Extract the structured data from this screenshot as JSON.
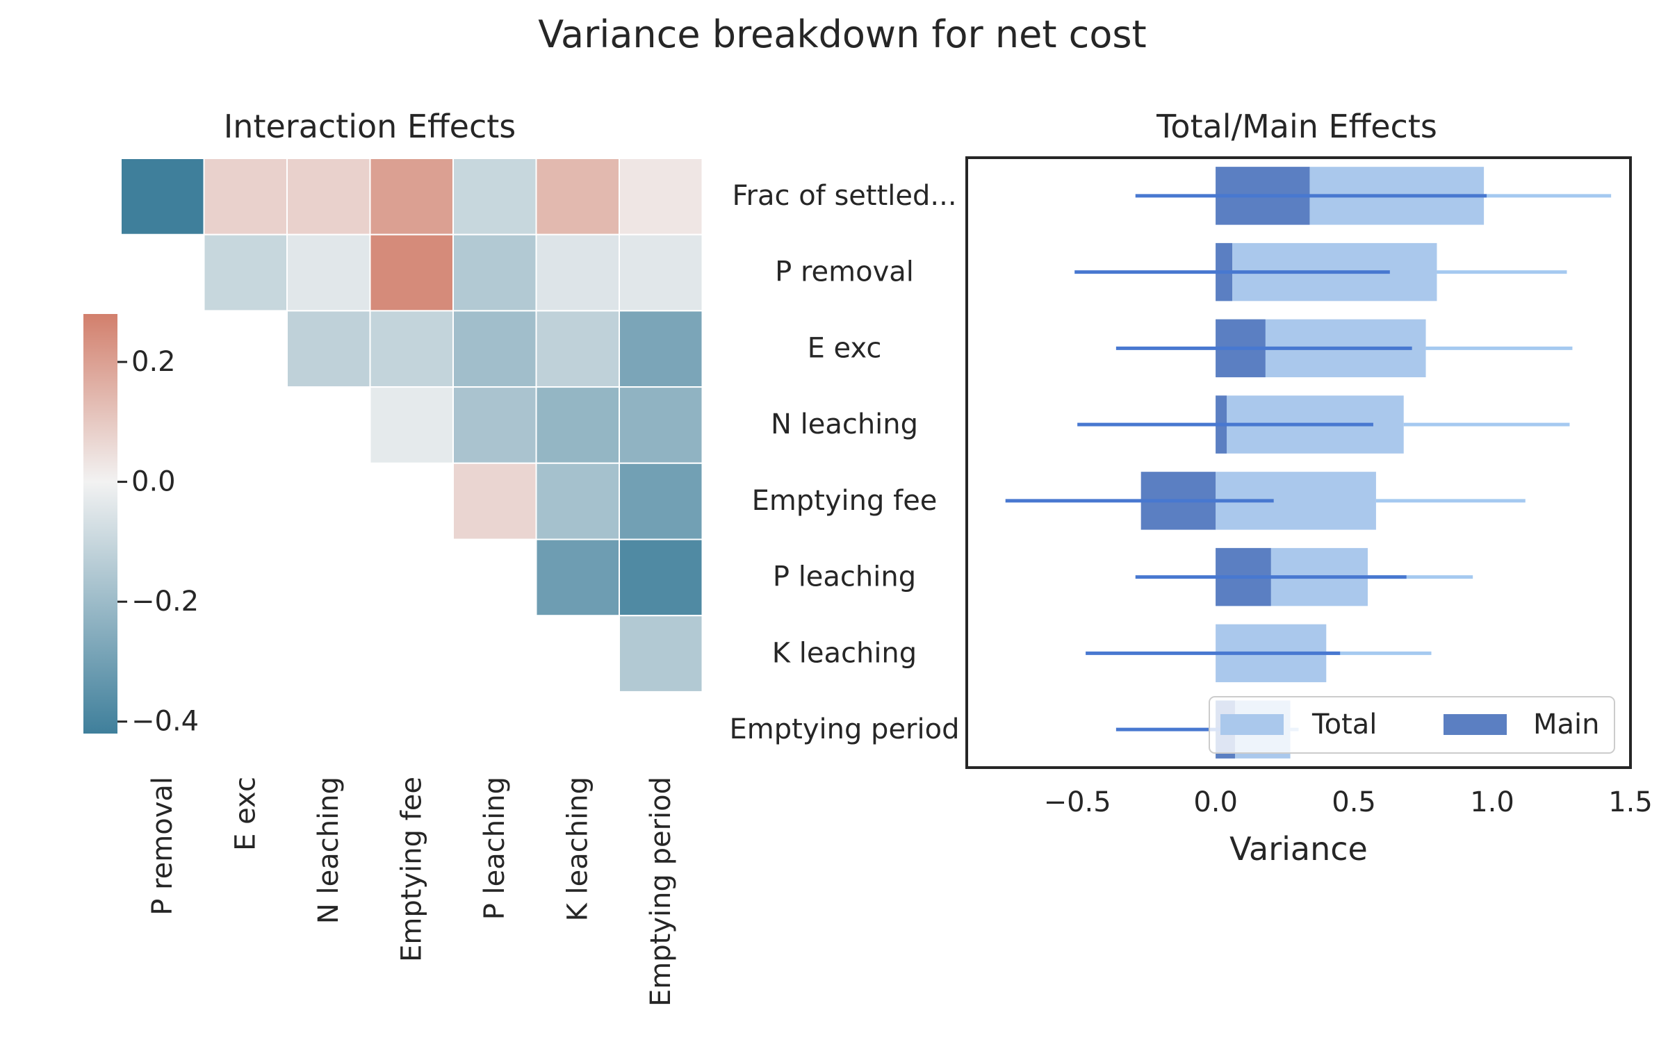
{
  "figure_title": "Variance breakdown for net cost",
  "chart_data": [
    {
      "type": "heatmap",
      "title": "Interaction Effects",
      "x_categories": [
        "P removal",
        "E exc",
        "N leaching",
        "Emptying fee",
        "P leaching",
        "K leaching",
        "Emptying period"
      ],
      "matrix": [
        [
          -0.42,
          0.08,
          0.08,
          0.2,
          -0.1,
          0.14,
          0.03
        ],
        [
          null,
          -0.1,
          -0.04,
          0.25,
          -0.15,
          -0.05,
          -0.04
        ],
        [
          null,
          null,
          -0.12,
          -0.11,
          -0.19,
          -0.12,
          -0.28
        ],
        [
          null,
          null,
          null,
          -0.03,
          -0.17,
          -0.22,
          -0.23
        ],
        [
          null,
          null,
          null,
          null,
          0.07,
          -0.18,
          -0.3
        ],
        [
          null,
          null,
          null,
          null,
          null,
          -0.31,
          -0.38
        ],
        [
          null,
          null,
          null,
          null,
          null,
          null,
          -0.15
        ]
      ],
      "colorbar": {
        "ticks": [
          0.2,
          0.0,
          -0.2,
          -0.4
        ],
        "range": [
          -0.42,
          0.28
        ]
      },
      "colors": {
        "negative": "#3f7f9b",
        "neutral": "#f2f2f2",
        "positive": "#d27f6c"
      }
    },
    {
      "type": "bar",
      "orientation": "horizontal",
      "title": "Total/Main Effects",
      "xlabel": "Variance",
      "xlim": [
        -0.9,
        1.5
      ],
      "xticks": [
        -0.5,
        0.0,
        0.5,
        1.0,
        1.5
      ],
      "categories": [
        "Frac of settled...",
        "P removal",
        "E exc",
        "N leaching",
        "Emptying fee",
        "P leaching",
        "K leaching",
        "Emptying period"
      ],
      "series": [
        {
          "name": "Total",
          "color": "#aac8ec",
          "values": [
            0.97,
            0.8,
            0.76,
            0.68,
            0.58,
            0.55,
            0.4,
            0.27
          ],
          "ci": [
            [
              null,
              1.43
            ],
            [
              null,
              1.27
            ],
            [
              null,
              1.29
            ],
            [
              null,
              1.28
            ],
            [
              null,
              1.12
            ],
            [
              null,
              0.93
            ],
            [
              null,
              0.78
            ],
            [
              null,
              0.3
            ]
          ]
        },
        {
          "name": "Main",
          "color": "#5b7fc2",
          "values": [
            0.34,
            0.06,
            0.18,
            0.04,
            -0.27,
            0.2,
            0.0,
            0.07
          ],
          "ci": [
            [
              -0.29,
              0.98
            ],
            [
              -0.51,
              0.63
            ],
            [
              -0.36,
              0.71
            ],
            [
              -0.5,
              0.57
            ],
            [
              -0.76,
              0.21
            ],
            [
              -0.29,
              0.69
            ],
            [
              -0.47,
              0.45
            ],
            [
              -0.36,
              0.03
            ]
          ]
        }
      ],
      "legend": {
        "location": "lower-right",
        "entries": [
          "Total",
          "Main"
        ]
      },
      "colors": {
        "total_ci": "#a5c9f0",
        "main_ci": "#4878d0"
      }
    }
  ]
}
